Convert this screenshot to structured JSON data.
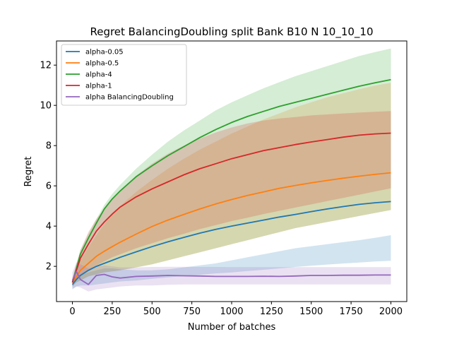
{
  "chart_data": {
    "type": "line",
    "title": "Regret BalancingDoubling split Bank B10 N 10_10_10",
    "xlabel": "Number of batches",
    "ylabel": "Regret",
    "xlim": [
      -100,
      2100
    ],
    "ylim": [
      0.25,
      13.2
    ],
    "xticks": [
      0,
      250,
      500,
      750,
      1000,
      1250,
      1500,
      1750,
      2000
    ],
    "yticks": [
      2,
      4,
      6,
      8,
      10,
      12
    ],
    "grid": false,
    "legend_position": "upper-left",
    "x": [
      0,
      25,
      50,
      100,
      150,
      200,
      250,
      300,
      400,
      500,
      600,
      700,
      800,
      900,
      1000,
      1100,
      1200,
      1300,
      1400,
      1500,
      1600,
      1700,
      1800,
      1900,
      2000
    ],
    "series": [
      {
        "name": "alpha-0.05",
        "color": "#1f77b4",
        "values": [
          1.1,
          1.35,
          1.55,
          1.8,
          2.0,
          2.15,
          2.3,
          2.45,
          2.72,
          2.98,
          3.22,
          3.44,
          3.65,
          3.84,
          4.0,
          4.15,
          4.3,
          4.45,
          4.58,
          4.72,
          4.85,
          4.97,
          5.08,
          5.16,
          5.22
        ],
        "lower": [
          0.85,
          1.0,
          1.05,
          1.05,
          1.1,
          1.15,
          1.2,
          1.25,
          1.3,
          1.38,
          1.45,
          1.52,
          1.58,
          1.65,
          1.7,
          1.77,
          1.83,
          1.9,
          1.97,
          2.03,
          2.09,
          2.14,
          2.19,
          2.24,
          2.28
        ],
        "upper": [
          1.3,
          1.55,
          1.6,
          1.7,
          1.8,
          1.9,
          1.9,
          1.85,
          1.8,
          1.8,
          1.85,
          1.95,
          2.05,
          2.15,
          2.3,
          2.45,
          2.6,
          2.75,
          2.9,
          3.0,
          3.1,
          3.2,
          3.3,
          3.42,
          3.55
        ]
      },
      {
        "name": "alpha-0.5",
        "color": "#ff7f0e",
        "values": [
          1.2,
          1.5,
          1.8,
          2.15,
          2.5,
          2.75,
          2.98,
          3.2,
          3.6,
          3.98,
          4.3,
          4.58,
          4.85,
          5.1,
          5.32,
          5.52,
          5.7,
          5.88,
          6.02,
          6.15,
          6.27,
          6.38,
          6.48,
          6.57,
          6.65
        ],
        "lower": [
          1.0,
          1.2,
          1.3,
          1.5,
          1.6,
          1.7,
          1.75,
          1.8,
          1.95,
          2.1,
          2.3,
          2.5,
          2.7,
          2.9,
          3.1,
          3.3,
          3.5,
          3.7,
          3.9,
          4.05,
          4.2,
          4.35,
          4.5,
          4.65,
          4.8
        ],
        "upper": [
          1.4,
          1.9,
          2.3,
          2.95,
          3.55,
          4.1,
          4.6,
          5.0,
          5.7,
          6.3,
          6.85,
          7.35,
          7.8,
          8.2,
          8.6,
          8.95,
          9.3,
          9.6,
          9.9,
          10.15,
          10.4,
          10.6,
          10.8,
          10.98,
          11.12
        ]
      },
      {
        "name": "alpha-4",
        "color": "#2ca02c",
        "values": [
          1.2,
          1.9,
          2.6,
          3.4,
          4.15,
          4.85,
          5.35,
          5.75,
          6.45,
          7.0,
          7.5,
          7.95,
          8.4,
          8.8,
          9.15,
          9.45,
          9.7,
          9.95,
          10.15,
          10.35,
          10.55,
          10.75,
          10.95,
          11.12,
          11.28
        ],
        "lower": [
          1.0,
          1.2,
          1.3,
          1.5,
          1.6,
          1.7,
          1.75,
          1.8,
          1.95,
          2.1,
          2.3,
          2.5,
          2.7,
          2.9,
          3.1,
          3.3,
          3.5,
          3.7,
          3.9,
          4.05,
          4.2,
          4.35,
          4.5,
          4.65,
          4.8
        ],
        "upper": [
          1.4,
          2.1,
          2.8,
          3.6,
          4.35,
          5.05,
          5.6,
          6.05,
          6.85,
          7.55,
          8.2,
          8.75,
          9.25,
          9.75,
          10.15,
          10.5,
          10.85,
          11.15,
          11.45,
          11.7,
          11.95,
          12.2,
          12.45,
          12.65,
          12.82
        ]
      },
      {
        "name": "alpha-1",
        "color": "#d62728",
        "values": [
          1.2,
          1.8,
          2.4,
          3.1,
          3.75,
          4.2,
          4.6,
          4.95,
          5.45,
          5.85,
          6.2,
          6.55,
          6.85,
          7.1,
          7.35,
          7.55,
          7.75,
          7.9,
          8.05,
          8.18,
          8.3,
          8.42,
          8.52,
          8.58,
          8.62
        ],
        "lower": [
          1.0,
          1.3,
          1.5,
          1.8,
          2.05,
          2.25,
          2.45,
          2.6,
          2.9,
          3.15,
          3.4,
          3.62,
          3.85,
          4.05,
          4.25,
          4.42,
          4.6,
          4.76,
          4.92,
          5.08,
          5.24,
          5.4,
          5.56,
          5.72,
          5.88
        ],
        "upper": [
          1.4,
          2.1,
          2.8,
          3.7,
          4.35,
          4.85,
          5.3,
          5.75,
          6.5,
          7.1,
          7.6,
          8.0,
          8.35,
          8.65,
          8.9,
          9.1,
          9.25,
          9.35,
          9.42,
          9.5,
          9.55,
          9.6,
          9.64,
          9.68,
          9.72
        ]
      },
      {
        "name": "alpha BalancingDoubling",
        "color": "#9467bd",
        "values": [
          1.3,
          1.75,
          1.35,
          1.1,
          1.55,
          1.6,
          1.48,
          1.42,
          1.5,
          1.52,
          1.55,
          1.53,
          1.52,
          1.5,
          1.5,
          1.5,
          1.51,
          1.5,
          1.52,
          1.55,
          1.55,
          1.56,
          1.56,
          1.57,
          1.57
        ],
        "lower": [
          0.9,
          1.0,
          0.95,
          0.75,
          0.85,
          0.9,
          0.95,
          1.0,
          1.05,
          1.05,
          1.08,
          1.1,
          1.1,
          1.1,
          1.1,
          1.1,
          1.1,
          1.1,
          1.1,
          1.1,
          1.1,
          1.1,
          1.1,
          1.1,
          1.1
        ],
        "upper": [
          1.7,
          2.2,
          2.1,
          1.9,
          2.0,
          2.05,
          2.0,
          1.95,
          1.95,
          1.97,
          1.98,
          1.98,
          1.97,
          1.97,
          1.96,
          1.96,
          1.96,
          1.96,
          1.96,
          1.96,
          1.96,
          1.96,
          1.96,
          1.96,
          1.96
        ]
      }
    ]
  }
}
